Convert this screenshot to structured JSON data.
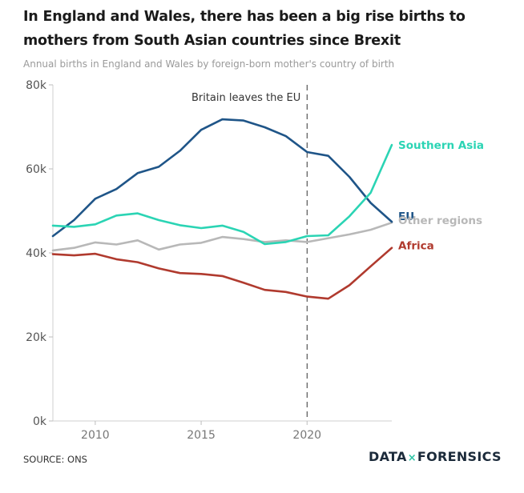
{
  "header": {
    "title": "In England and Wales, there has been a big rise births to mothers from South Asian countries since Brexit",
    "subtitle": "Annual births in England and Wales by foreign-born mother's country of birth"
  },
  "footer": {
    "source": "SOURCE: ONS",
    "logo_left": "DATA",
    "logo_x": "×",
    "logo_right": "FORENSICS"
  },
  "chart_data": {
    "type": "line",
    "title": "In England and Wales, there has been a big rise births to mothers from South Asian countries since Brexit",
    "subtitle": "Annual births in England and Wales by foreign-born mother's country of birth",
    "xlabel": "",
    "ylabel": "",
    "xlim": [
      2008,
      2024
    ],
    "ylim": [
      0,
      80000
    ],
    "x_ticks": [
      2010,
      2015,
      2020
    ],
    "x_tick_labels": [
      "2010",
      "2015",
      "2020"
    ],
    "y_ticks": [
      0,
      20000,
      40000,
      60000,
      80000
    ],
    "y_tick_labels": [
      "0k",
      "20k",
      "40k",
      "60k",
      "80k"
    ],
    "grid": false,
    "legend": "direct labels at line ends (right)",
    "annotations": [
      {
        "x": 2020,
        "text": "Britain leaves the EU",
        "style": "dashed vertical line"
      }
    ],
    "x": [
      2008,
      2009,
      2010,
      2011,
      2012,
      2013,
      2014,
      2015,
      2016,
      2017,
      2018,
      2019,
      2020,
      2021,
      2022,
      2023,
      2024
    ],
    "series": [
      {
        "name": "Southern Asia",
        "color": "#2bd4b4",
        "values": [
          46500,
          46200,
          46800,
          48900,
          49400,
          47800,
          46600,
          45900,
          46500,
          45000,
          42100,
          42600,
          44000,
          44200,
          48700,
          54300,
          65700
        ]
      },
      {
        "name": "EU",
        "color": "#1f5588",
        "values": [
          44000,
          47800,
          52900,
          55200,
          59000,
          60500,
          64300,
          69300,
          71800,
          71500,
          69900,
          67800,
          64000,
          63100,
          58100,
          51900,
          47400
        ]
      },
      {
        "name": "Other regions",
        "color": "#b8b8b8",
        "values": [
          40600,
          41200,
          42500,
          42000,
          43000,
          40800,
          42000,
          42400,
          43800,
          43300,
          42600,
          43000,
          42600,
          43500,
          44400,
          45500,
          47200
        ]
      },
      {
        "name": "Africa",
        "color": "#b03a2e",
        "values": [
          39700,
          39400,
          39800,
          38500,
          37800,
          36300,
          35200,
          35000,
          34500,
          32900,
          31200,
          30700,
          29600,
          29100,
          32300,
          36800,
          41200
        ]
      }
    ]
  }
}
